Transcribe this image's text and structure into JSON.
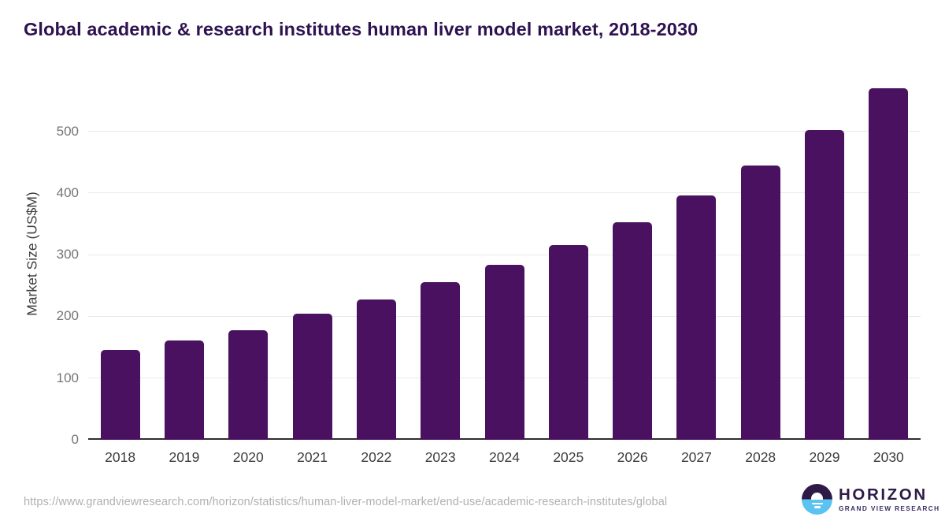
{
  "title": "Global academic & research institutes human liver model market, 2018-2030",
  "footer": {
    "source_url": "https://www.grandviewresearch.com/horizon/statistics/human-liver-model-market/end-use/academic-research-institutes/global",
    "logo": {
      "name": "HORIZON",
      "subtitle": "GRAND VIEW RESEARCH"
    }
  },
  "colors": {
    "bar": "#4A1161",
    "title": "#2E1250",
    "gridline": "#E9E9E9",
    "axis_line": "#2E2E2E",
    "y_tick_label": "#757575",
    "x_tick_label": "#3C3C3C",
    "source_url": "#B0B0B0",
    "logo_dark_purple": "#2E1A47",
    "logo_light_blue": "#5BC3F0"
  },
  "chart_data": {
    "type": "bar",
    "title": "Global academic & research institutes human liver model market, 2018-2030",
    "categories": [
      "2018",
      "2019",
      "2020",
      "2021",
      "2022",
      "2023",
      "2024",
      "2025",
      "2026",
      "2027",
      "2028",
      "2029",
      "2030"
    ],
    "values": [
      145,
      161,
      177,
      205,
      228,
      255,
      283,
      316,
      353,
      396,
      445,
      502,
      570
    ],
    "xlabel": "",
    "ylabel": "Market Size (US$M)",
    "ylim": [
      0,
      585
    ],
    "yticks": [
      0,
      100,
      200,
      300,
      400,
      500
    ],
    "grid": true,
    "legend": "none",
    "bar_color": "#4A1161"
  }
}
